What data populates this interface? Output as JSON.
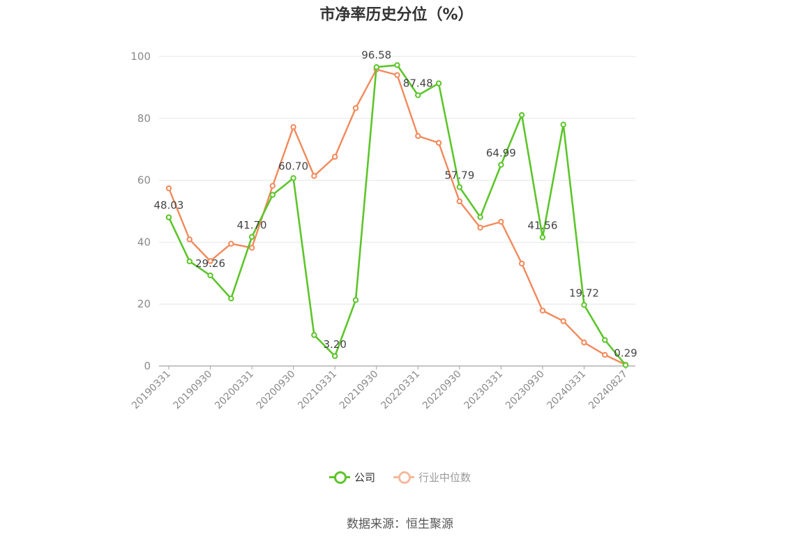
{
  "title": "市净率历史分位（%）",
  "source_note": "数据来源：恒生聚源",
  "colors": {
    "company": "#5cc52a",
    "industry": "#f2895a",
    "industry_legend": "#f5b99c",
    "axis": "#a0a0a8",
    "grid": "#e3e6ec"
  },
  "chart_data": {
    "type": "line",
    "title": "市净率历史分位（%）",
    "xlabel": "",
    "ylabel": "",
    "ylim": [
      0,
      100
    ],
    "yticks": [
      0,
      20,
      40,
      60,
      80,
      100
    ],
    "grid": true,
    "legend_position": "bottom",
    "categories": [
      "20190331",
      "20190630",
      "20190930",
      "20191231",
      "20200331",
      "20200630",
      "20200930",
      "20201231",
      "20210331",
      "20210630",
      "20210930",
      "20211231",
      "20220331",
      "20220630",
      "20220930",
      "20221231",
      "20230331",
      "20230630",
      "20230930",
      "20231231",
      "20240331",
      "20240630",
      "20240827"
    ],
    "tick_labels": [
      "20190331",
      "20190930",
      "20200331",
      "20200930",
      "20210331",
      "20210930",
      "20220331",
      "20220930",
      "20230331",
      "20230930",
      "20240331",
      "20240827"
    ],
    "series": [
      {
        "name": "公司",
        "values": [
          48.03,
          33.8,
          29.26,
          21.8,
          41.7,
          55.3,
          60.7,
          10.0,
          3.2,
          21.3,
          96.58,
          97.2,
          87.48,
          91.3,
          57.79,
          48.1,
          64.99,
          81.1,
          41.56,
          78.0,
          19.72,
          8.4,
          0.29
        ]
      },
      {
        "name": "行业中位数",
        "values": [
          57.4,
          40.9,
          33.9,
          39.5,
          38.2,
          58.2,
          77.2,
          61.4,
          67.6,
          83.3,
          95.8,
          94.0,
          74.3,
          72.1,
          53.2,
          44.7,
          46.6,
          33.1,
          17.9,
          14.5,
          7.6,
          3.6,
          0.4
        ]
      }
    ],
    "data_labels": [
      {
        "index": 0,
        "text": "48.03"
      },
      {
        "index": 2,
        "text": "29.26"
      },
      {
        "index": 4,
        "text": "41.70"
      },
      {
        "index": 6,
        "text": "60.70"
      },
      {
        "index": 8,
        "text": "3.20"
      },
      {
        "index": 10,
        "text": "96.58"
      },
      {
        "index": 12,
        "text": "87.48"
      },
      {
        "index": 14,
        "text": "57.79"
      },
      {
        "index": 16,
        "text": "64.99"
      },
      {
        "index": 18,
        "text": "41.56"
      },
      {
        "index": 20,
        "text": "19.72"
      },
      {
        "index": 22,
        "text": "0.29"
      }
    ]
  }
}
